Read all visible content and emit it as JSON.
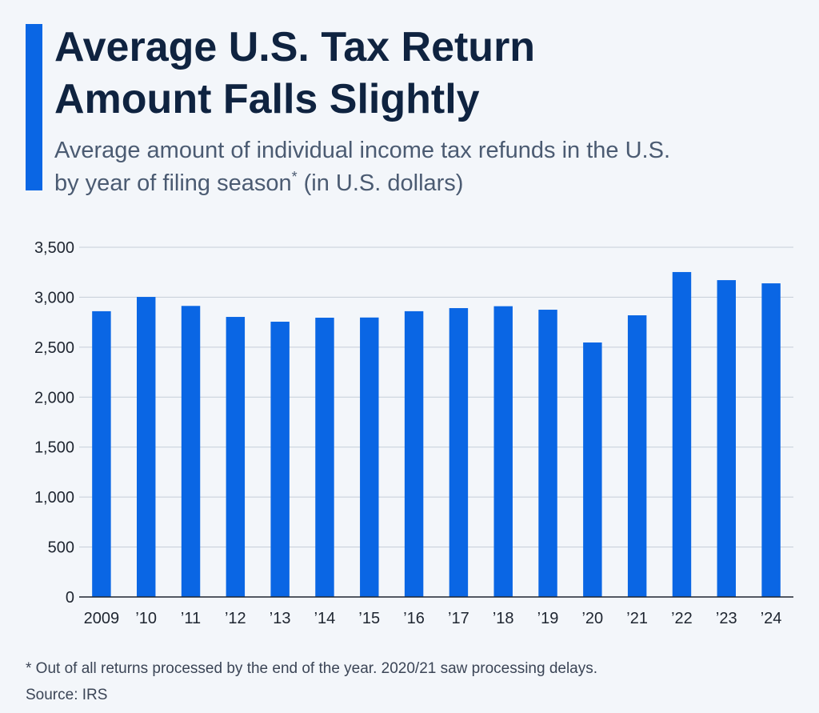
{
  "chart_data": {
    "type": "bar",
    "title": [
      "Average U.S. Tax Return",
      "Amount Falls Slightly"
    ],
    "subtitle": {
      "lines": [
        "Average amount of individual income tax refunds in the U.S.",
        "by year of filing season"
      ],
      "mark": "*",
      "unit": "(in U.S. dollars)"
    },
    "categories": [
      "2009",
      "’10",
      "’11",
      "’12",
      "’13",
      "’14",
      "’15",
      "’16",
      "’17",
      "’18",
      "’19",
      "’20",
      "’21",
      "’22",
      "’23",
      "’24"
    ],
    "values": [
      2860,
      3003,
      2913,
      2803,
      2755,
      2795,
      2797,
      2860,
      2891,
      2910,
      2875,
      2547,
      2819,
      3252,
      3171,
      3139
    ],
    "color": "#0a66e4",
    "ylim": [
      0,
      3500
    ],
    "yticks": [
      0,
      500,
      {
        "value": 1000,
        "label": "1,000"
      },
      {
        "value": 1500,
        "label": "1,500"
      },
      {
        "value": 2000,
        "label": "2,000"
      },
      {
        "value": 2500,
        "label": "2,500"
      },
      {
        "value": 3000,
        "label": "3,000"
      },
      {
        "value": 3500,
        "label": "3,500"
      }
    ],
    "grid": true,
    "note": "* Out of all returns processed by the end of the year. 2020/21 saw processing delays.",
    "source": "Source: IRS"
  }
}
